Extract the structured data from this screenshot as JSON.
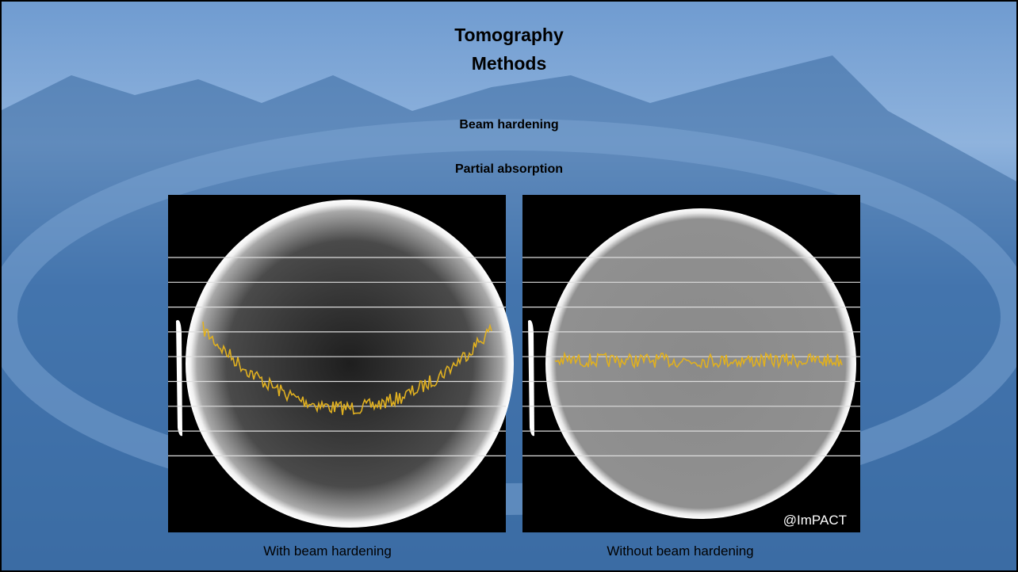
{
  "header": {
    "title_lines": [
      "Tomography",
      "Methods"
    ]
  },
  "topics": [
    "Beam hardening",
    "Partial absorption"
  ],
  "figures": [
    {
      "caption": "With beam hardening"
    },
    {
      "caption": "Without beam hardening",
      "credit": "@ImPACT"
    }
  ]
}
